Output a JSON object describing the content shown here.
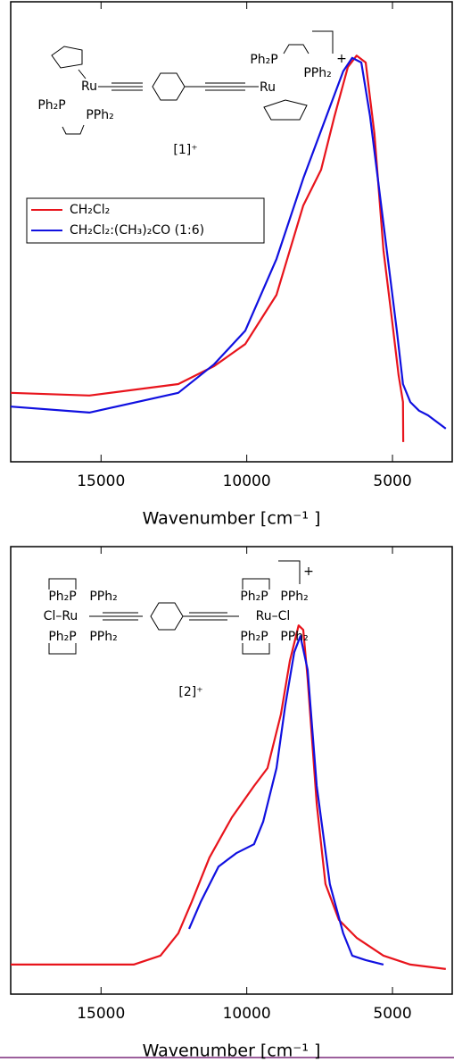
{
  "chart_data": [
    {
      "type": "line",
      "xlabel": "Wavenumber [cm⁻¹ ]",
      "xlim": [
        18100,
        2950
      ],
      "xticks": [
        15000,
        10000,
        5000
      ],
      "ylim": [
        0,
        1
      ],
      "legend": "upper left",
      "structure_labels": [
        "Ru",
        "Ph₂P",
        "PPh₂",
        "Ph₂P",
        "PPh₂",
        "Ru",
        "+",
        "[1]⁺"
      ],
      "series": [
        {
          "name": "CH₂Cl₂",
          "color": "#e8141c",
          "x": [
            18100,
            15400,
            12350,
            11120,
            10050,
            8980,
            8060,
            7450,
            6990,
            6530,
            6230,
            5920,
            5620,
            5310,
            5010,
            4790,
            4640,
            4630
          ],
          "values": [
            0.15,
            0.144,
            0.169,
            0.208,
            0.256,
            0.363,
            0.557,
            0.635,
            0.751,
            0.858,
            0.883,
            0.868,
            0.713,
            0.46,
            0.305,
            0.188,
            0.13,
            0.043
          ]
        },
        {
          "name": "CH₂Cl₂:(CH₃)₂CO (1:6)",
          "color": "#1010e0",
          "x": [
            18100,
            15400,
            12350,
            11120,
            10050,
            8980,
            8060,
            7150,
            6690,
            6380,
            6070,
            5770,
            5310,
            4850,
            4640,
            4390,
            4090,
            3780,
            3170
          ],
          "values": [
            0.12,
            0.107,
            0.15,
            0.212,
            0.285,
            0.441,
            0.616,
            0.771,
            0.849,
            0.878,
            0.868,
            0.751,
            0.518,
            0.285,
            0.169,
            0.13,
            0.111,
            0.101,
            0.072
          ]
        }
      ]
    },
    {
      "type": "line",
      "xlabel": "Wavenumber [cm⁻¹ ]",
      "xlim": [
        18100,
        2950
      ],
      "xticks": [
        15000,
        10000,
        5000
      ],
      "ylim": [
        0,
        1
      ],
      "structure_labels": [
        "Ph₂P",
        "PPh₂",
        "Cl–Ru",
        "Ph₂P",
        "PPh₂",
        "Ph₂P",
        "PPh₂",
        "Ru–Cl",
        "Ph₂P",
        "PPh₂",
        "+",
        "[2]⁺"
      ],
      "series": [
        {
          "color": "#e8141c",
          "x": [
            18100,
            13880,
            12960,
            12350,
            11890,
            11280,
            10510,
            9750,
            9290,
            8830,
            8520,
            8220,
            8060,
            7910,
            7600,
            7300,
            6840,
            6230,
            5310,
            4390,
            3170
          ],
          "values": [
            0.066,
            0.066,
            0.086,
            0.136,
            0.206,
            0.305,
            0.395,
            0.465,
            0.505,
            0.625,
            0.745,
            0.824,
            0.814,
            0.705,
            0.425,
            0.246,
            0.166,
            0.126,
            0.086,
            0.066,
            0.056
          ]
        },
        {
          "color": "#1010e0",
          "x": [
            11980,
            11580,
            10970,
            10360,
            9750,
            9440,
            8980,
            8680,
            8370,
            8160,
            7910,
            7600,
            7150,
            6690,
            6380,
            5920,
            5310
          ],
          "values": [
            0.146,
            0.206,
            0.285,
            0.315,
            0.335,
            0.385,
            0.505,
            0.645,
            0.764,
            0.8,
            0.725,
            0.465,
            0.246,
            0.136,
            0.086,
            0.076,
            0.066
          ]
        }
      ]
    }
  ]
}
